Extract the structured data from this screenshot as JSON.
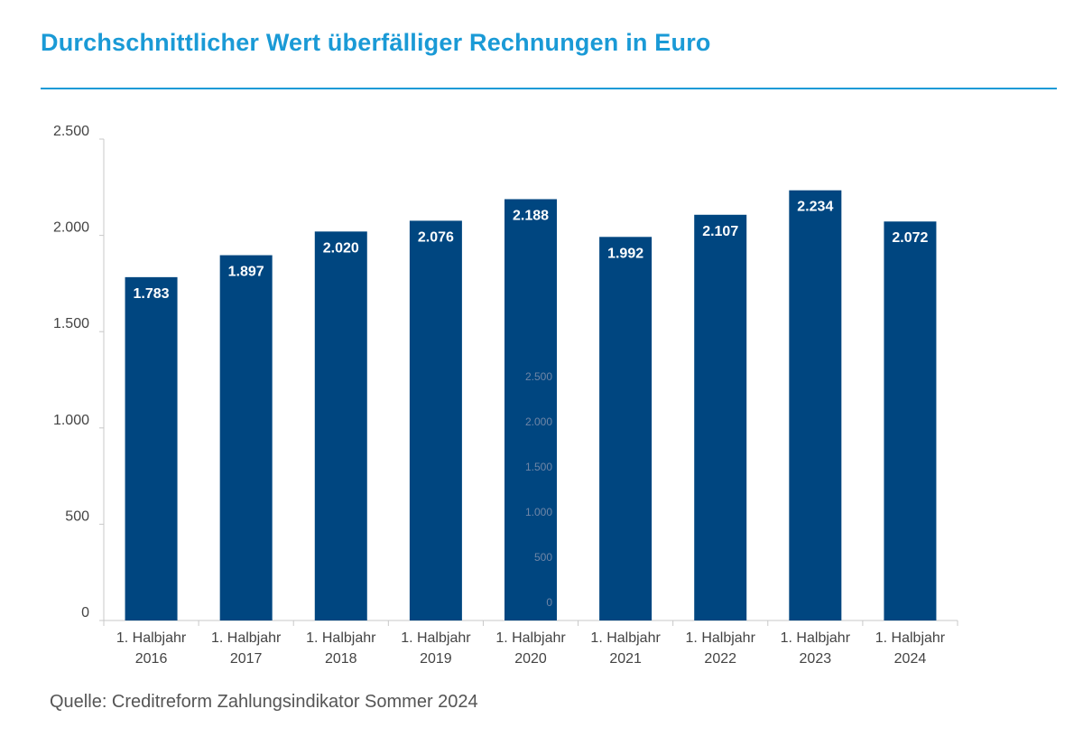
{
  "title": "Durchschnittlicher Wert überfälliger Rechnungen in Euro",
  "source": "Quelle: Creditreform Zahlungsindikator Sommer 2024",
  "colors": {
    "title": "#1a9ad6",
    "bar": "#004680",
    "bar_label": "#ffffff",
    "axis": "#c8c8c8",
    "tick_text": "#444444",
    "ghost_tick_text": "#6f86a6"
  },
  "chart_data": {
    "type": "bar",
    "categories": [
      "1. Halbjahr 2016",
      "1. Halbjahr 2017",
      "1. Halbjahr 2018",
      "1. Halbjahr 2019",
      "1. Halbjahr 2020",
      "1. Halbjahr 2021",
      "1. Halbjahr 2022",
      "1. Halbjahr 2023",
      "1. Halbjahr 2024"
    ],
    "category_lines": [
      [
        "1. Halbjahr",
        "2016"
      ],
      [
        "1. Halbjahr",
        "2017"
      ],
      [
        "1. Halbjahr",
        "2018"
      ],
      [
        "1. Halbjahr",
        "2019"
      ],
      [
        "1. Halbjahr",
        "2020"
      ],
      [
        "1. Halbjahr",
        "2021"
      ],
      [
        "1. Halbjahr",
        "2022"
      ],
      [
        "1. Halbjahr",
        "2023"
      ],
      [
        "1. Halbjahr",
        "2024"
      ]
    ],
    "values": [
      1783,
      1897,
      2020,
      2076,
      2188,
      1992,
      2107,
      2234,
      2072
    ],
    "value_labels": [
      "1.783",
      "1.897",
      "2.020",
      "2.076",
      "2.188",
      "1.992",
      "2.107",
      "2.234",
      "2.072"
    ],
    "ylim": [
      0,
      2500
    ],
    "y_ticks": [
      0,
      500,
      1000,
      1500,
      2000,
      2500
    ],
    "y_tick_labels": [
      "0",
      "500",
      "1.000",
      "1.500",
      "2.000",
      "2.500"
    ],
    "ghost_axis_labels": [
      "2.500",
      "2.000",
      "1.500",
      "1.000",
      "500",
      "0"
    ],
    "grid": false,
    "legend": "none",
    "xlabel": "",
    "ylabel": ""
  }
}
